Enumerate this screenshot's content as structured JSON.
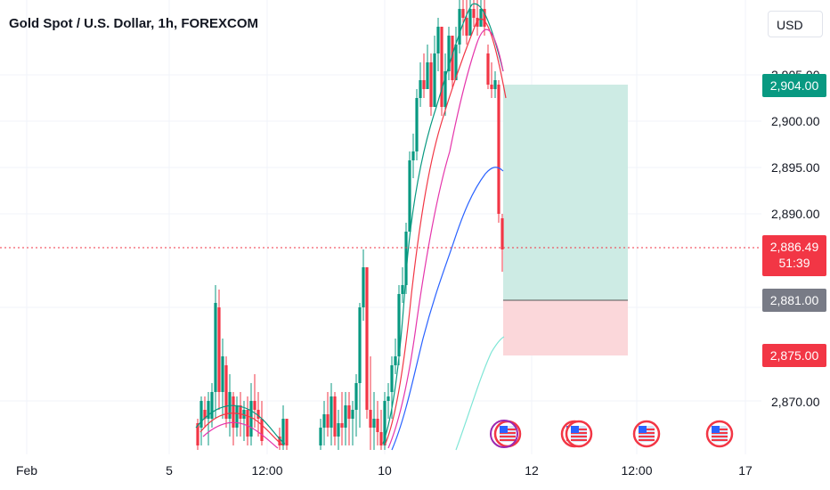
{
  "header": {
    "title": "Gold Spot / U.S. Dollar, 1h, FOREXCOM",
    "currency": "USD"
  },
  "colors": {
    "up": "#089981",
    "down": "#f23645",
    "target_zone": "#cdebe4",
    "stop_zone": "#fbd7da",
    "ema_fast": "#089981",
    "ema_mid": "#f23645",
    "ema_slow": "#e535ab",
    "ema_long": "#2962ff",
    "ema_longest": "#7fe6d6",
    "current_price": "#f23645",
    "entry_label": "#787b86",
    "target_label": "#089981"
  },
  "price_labels": {
    "target": "2,904.00",
    "current": "2,886.49",
    "countdown": "51:39",
    "entry": "2,881.00",
    "stop": "2,875.00"
  },
  "chart_data": {
    "type": "candlestick",
    "title": "Gold Spot / U.S. Dollar, 1h, FOREXCOM",
    "xlabel": "",
    "ylabel": "",
    "y_ticks": [
      "2,870.00",
      "2,890.00",
      "2,895.00",
      "2,900.00",
      "2,905.00"
    ],
    "x_ticks": [
      "Feb",
      "5",
      "12:00",
      "10",
      "12",
      "12:00",
      "17"
    ],
    "grid": true,
    "current_price": 2886.49,
    "position": {
      "type": "long",
      "entry": 2881.0,
      "target": 2904.0,
      "stop": 2875.0
    },
    "event_markers": 5
  }
}
